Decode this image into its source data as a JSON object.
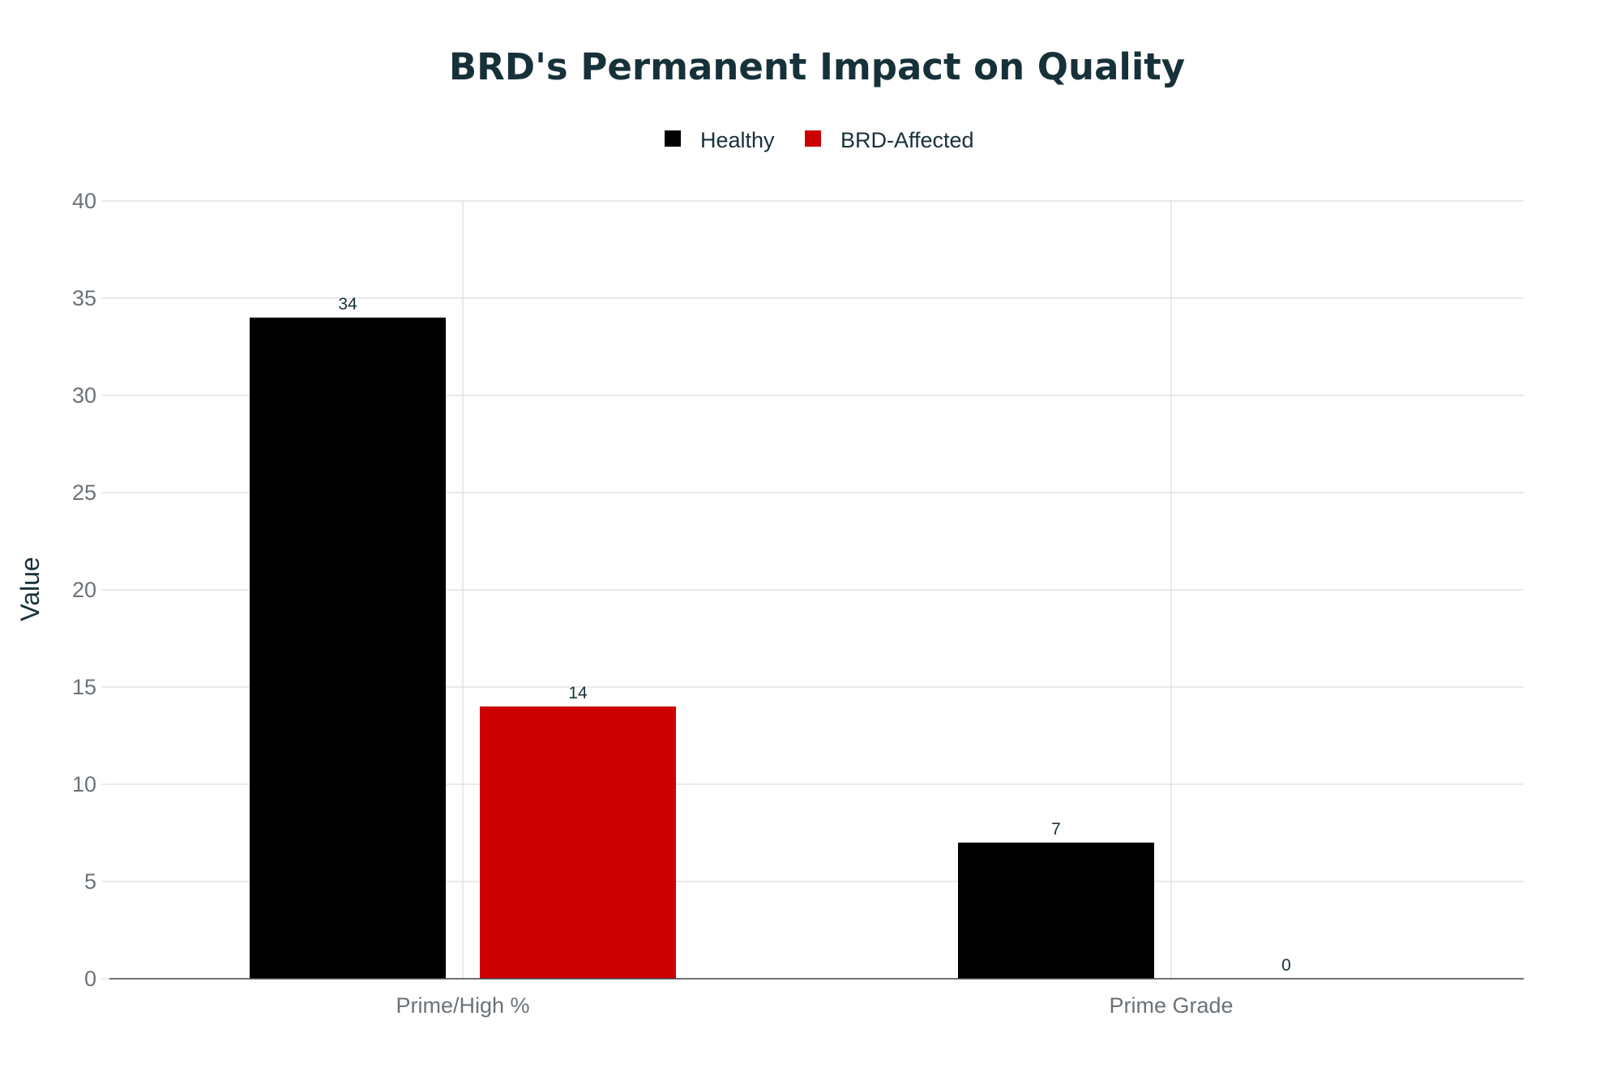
{
  "chart_data": {
    "type": "bar",
    "title": "BRD's Permanent Impact on Quality",
    "xlabel": "",
    "ylabel": "Value",
    "categories": [
      "Prime/High %",
      "Prime Grade"
    ],
    "series": [
      {
        "name": "Healthy",
        "values": [
          34,
          7
        ],
        "color": "#000000"
      },
      {
        "name": "BRD-Affected",
        "values": [
          14,
          0
        ],
        "color": "#cc0000"
      }
    ],
    "ylim": [
      0,
      40
    ],
    "yticks": [
      0,
      5,
      10,
      15,
      20,
      25,
      30,
      35,
      40
    ],
    "grid": true,
    "legend_position": "top-center",
    "data_labels": true
  }
}
